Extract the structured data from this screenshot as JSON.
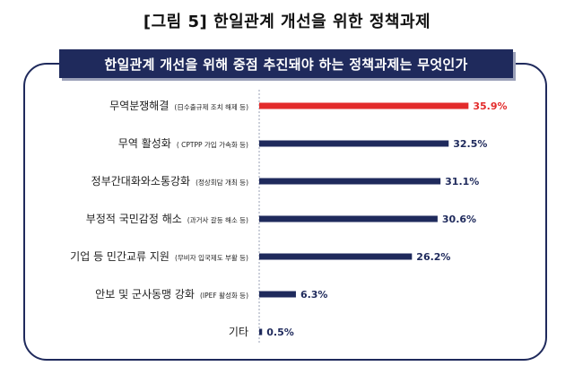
{
  "figure_title": "[그림 5] 한일관계 개선을 위한 정책과제",
  "chart_data": {
    "type": "bar",
    "orientation": "horizontal",
    "title": "한일관계 개선을 위해 중점 추진돼야 하는 정책과제는 무엇인가",
    "categories": [
      {
        "label": "무역분쟁해결",
        "note": "(日수출규제 조치 해제 등)"
      },
      {
        "label": "무역 활성화",
        "note": "( CPTPP 가입 가속화 등)"
      },
      {
        "label": "정부간대화와소통강화",
        "note": "(정상회담 개최 등)"
      },
      {
        "label": "부정적 국민감정 해소",
        "note": "(과거사 갈등 해소 등)"
      },
      {
        "label": "기업 등 민간교류 지원",
        "note": "(무비자 입국제도 부활 등)"
      },
      {
        "label": "안보 및 군사동맹 강화",
        "note": "(IPEF 활성화 등)"
      },
      {
        "label": "기타",
        "note": ""
      }
    ],
    "values": [
      35.9,
      32.5,
      31.1,
      30.6,
      26.2,
      6.3,
      0.5
    ],
    "value_labels": [
      "35.9%",
      "32.5%",
      "31.1%",
      "30.6%",
      "26.2%",
      "6.3%",
      "0.5%"
    ],
    "xlim": [
      0,
      40
    ],
    "grid": false,
    "colors": {
      "highlight": "#e32b2b",
      "bar": "#1f2a5c",
      "highlight_label": "#e32b2b",
      "label": "#1f2a5c",
      "axis": "#9aa0b4"
    },
    "highlight_index": 0
  }
}
